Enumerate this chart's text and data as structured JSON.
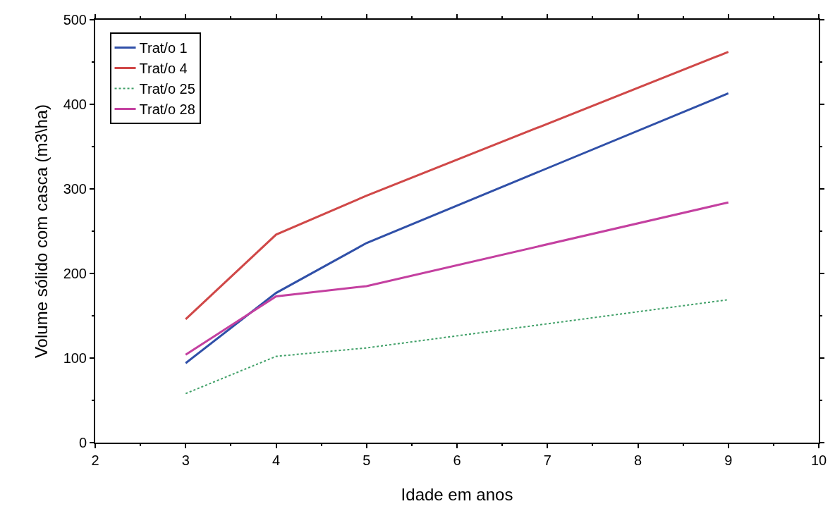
{
  "chart_data": {
    "type": "line",
    "xlabel": "Idade em anos",
    "ylabel": "Volume sólido com casca (m3\\ha)",
    "x": [
      3,
      4,
      5,
      9
    ],
    "series": [
      {
        "name": "Trat/o 1",
        "color": "#3050a8",
        "values": [
          94,
          177,
          236,
          413
        ],
        "line_style": "solid"
      },
      {
        "name": "Trat/o 4",
        "color": "#d04848",
        "values": [
          146,
          246,
          292,
          462
        ],
        "line_style": "solid"
      },
      {
        "name": "Trat/o 25",
        "color": "#40a068",
        "values": [
          58,
          102,
          112,
          169
        ],
        "line_style": "dotted"
      },
      {
        "name": "Trat/o 28",
        "color": "#c440a0",
        "values": [
          104,
          173,
          185,
          284
        ],
        "line_style": "solid"
      }
    ],
    "xlim": [
      2,
      10
    ],
    "xticks": [
      2,
      3,
      4,
      5,
      6,
      7,
      8,
      9,
      10
    ],
    "ylim": [
      0,
      500
    ],
    "yticks": [
      0,
      100,
      200,
      300,
      400,
      500
    ],
    "grid": false,
    "legend": "top left",
    "marker": "none"
  }
}
